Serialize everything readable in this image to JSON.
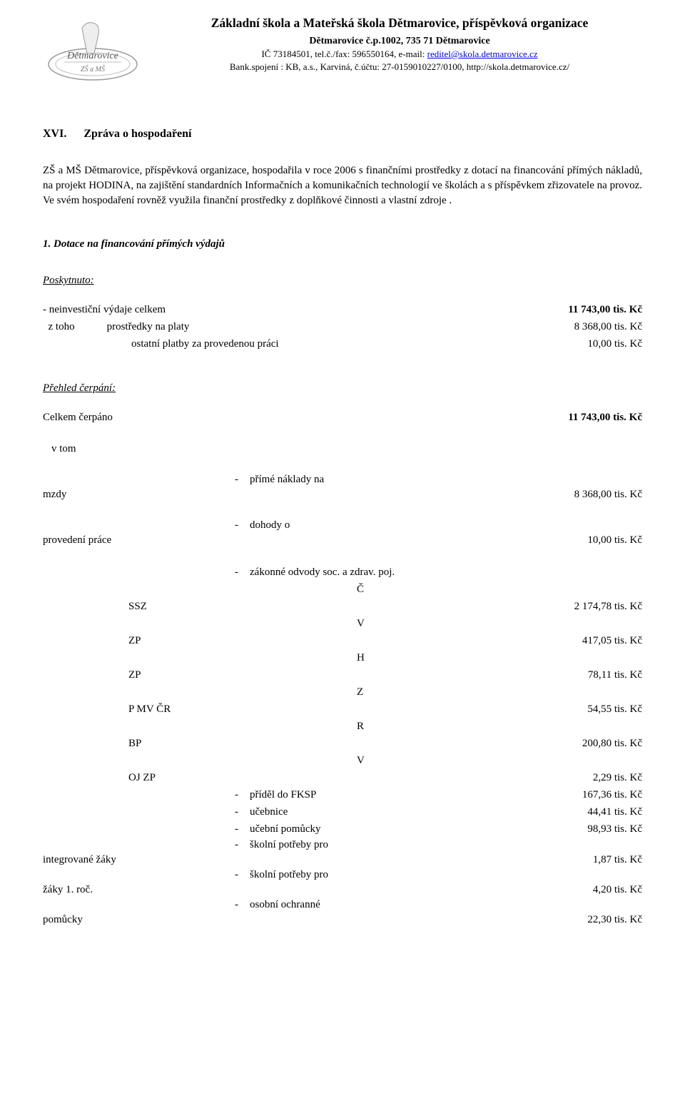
{
  "header": {
    "org_title": "Základní škola a Mateřská škola Dětmarovice, příspěvková organizace",
    "address": "Dětmarovice č.p.1002, 735 71 Dětmarovice",
    "contact_prefix": "IČ 73184501, tel.č./fax: 596550164, e-mail: ",
    "email": "reditel@skola.detmarovice.cz",
    "bank": "Bank.spojení : KB, a.s., Karviná, č.účtu: 27-0159010227/0100, http://skola.detmarovice.cz/"
  },
  "section": {
    "num": "XVI.",
    "title": "Zpráva o hospodaření"
  },
  "intro": "ZŠ a MŠ Dětmarovice, příspěvková organizace, hospodařila v roce 2006 s finančními prostředky z dotací na financování přímých nákladů, na projekt HODINA, na zajištění standardních Informačních a komunikačních technologií ve školách a s příspěvkem zřizovatele na provoz. Ve svém hospodaření rovněž využila finanční prostředky z doplňkové činnosti  a vlastní zdroje .",
  "sub1": "1. Dotace na financování přímých výdajů",
  "poskytnuto": {
    "heading": "Poskytnuto:",
    "rows": [
      {
        "label": "- neinvestiční výdaje celkem",
        "amount": "11 743,00 tis. Kč",
        "bold_amount": true
      },
      {
        "label": "z toho          prostředky na platy",
        "amount": "8 368,00 tis. Kč",
        "indent": true
      },
      {
        "label": "ostatní platby za provedenou práci",
        "amount": "10,00 tis. Kč",
        "indent2": true
      }
    ]
  },
  "cerpani": {
    "heading": "Přehled čerpání:",
    "total_label": "Celkem čerpáno",
    "total_amount": "11 743,00 tis. Kč",
    "vtom": "v tom"
  },
  "wrapped": {
    "mzdy_dash": "-",
    "mzdy_text1": "přímé náklady na",
    "mzdy_cont": "mzdy",
    "mzdy_amount": "8 368,00 tis. Kč",
    "dohody_dash": "-",
    "dohody_text1": "dohody o",
    "dohody_cont": "provedení práce",
    "dohody_amount": "10,00 tis. Kč",
    "zakonne_dash": "-",
    "zakonne_text": "zákonné odvody soc. a zdrav. poj."
  },
  "odvody": [
    {
      "letter": "Č",
      "code": "SSZ",
      "amount": "2 174,78 tis. Kč"
    },
    {
      "letter": "V",
      "code": "ZP",
      "amount": "417,05 tis. Kč"
    },
    {
      "letter": "H",
      "code": "ZP",
      "amount": "78,11 tis. Kč"
    },
    {
      "letter": "Z",
      "code": "P MV ČR",
      "amount": "54,55 tis. Kč"
    },
    {
      "letter": "R",
      "code": "BP",
      "amount": "200,80 tis. Kč"
    },
    {
      "letter": "V",
      "code": "OJ ZP",
      "amount": "2,29 tis. Kč"
    }
  ],
  "bullets": [
    {
      "dash": "-",
      "label": "příděl do FKSP",
      "amount": "167,36 tis. Kč"
    },
    {
      "dash": "-",
      "label": "učebnice",
      "amount": "44,41 tis. Kč"
    },
    {
      "dash": "-",
      "label": "učební pomůcky",
      "amount": "98,93 tis. Kč"
    }
  ],
  "twoline": [
    {
      "dash": "-",
      "l1": "školní potřeby pro",
      "cont": "integrované žáky",
      "amount": "1,87 tis. Kč"
    },
    {
      "dash": "-",
      "l1": "školní potřeby pro",
      "cont": "žáky 1. roč.",
      "amount": "4,20 tis. Kč"
    },
    {
      "dash": "-",
      "l1": "osobní ochranné",
      "cont": "pomůcky",
      "amount": "22,30 tis. Kč"
    }
  ],
  "colors": {
    "link": "#0000ee",
    "text": "#000000",
    "bg": "#ffffff"
  }
}
